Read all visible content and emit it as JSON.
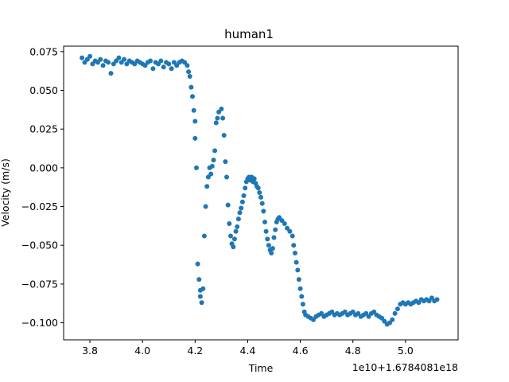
{
  "chart_data": {
    "type": "scatter",
    "title": "human1",
    "xlabel": "Time",
    "ylabel": "Velocity (m/s)",
    "x_offset_label": "1e10+1.6784081e18",
    "xlim": [
      3.7,
      5.2
    ],
    "ylim": [
      -0.111,
      0.0785
    ],
    "x_ticks": [
      {
        "value": 3.8,
        "label": "3.8"
      },
      {
        "value": 4.0,
        "label": "4.0"
      },
      {
        "value": 4.2,
        "label": "4.2"
      },
      {
        "value": 4.4,
        "label": "4.4"
      },
      {
        "value": 4.6,
        "label": "4.6"
      },
      {
        "value": 4.8,
        "label": "4.8"
      },
      {
        "value": 5.0,
        "label": "5.0"
      }
    ],
    "y_ticks": [
      {
        "value": 0.075,
        "label": "0.075"
      },
      {
        "value": 0.05,
        "label": "0.050"
      },
      {
        "value": 0.025,
        "label": "0.025"
      },
      {
        "value": 0.0,
        "label": "0.000"
      },
      {
        "value": -0.025,
        "label": "−0.025"
      },
      {
        "value": -0.05,
        "label": "−0.050"
      },
      {
        "value": -0.075,
        "label": "−0.075"
      },
      {
        "value": -0.1,
        "label": "−0.100"
      }
    ],
    "grid": false,
    "marker_color": "#1f77b4",
    "series": [
      {
        "points": [
          [
            3.77,
            0.071
          ],
          [
            3.78,
            0.068
          ],
          [
            3.79,
            0.07
          ],
          [
            3.8,
            0.072
          ],
          [
            3.81,
            0.067
          ],
          [
            3.82,
            0.069
          ],
          [
            3.83,
            0.068
          ],
          [
            3.84,
            0.07
          ],
          [
            3.85,
            0.066
          ],
          [
            3.86,
            0.069
          ],
          [
            3.87,
            0.068
          ],
          [
            3.88,
            0.061
          ],
          [
            3.89,
            0.067
          ],
          [
            3.9,
            0.069
          ],
          [
            3.91,
            0.071
          ],
          [
            3.92,
            0.068
          ],
          [
            3.93,
            0.07
          ],
          [
            3.94,
            0.067
          ],
          [
            3.95,
            0.069
          ],
          [
            3.96,
            0.068
          ],
          [
            3.97,
            0.067
          ],
          [
            3.98,
            0.069
          ],
          [
            3.99,
            0.068
          ],
          [
            4.0,
            0.067
          ],
          [
            4.01,
            0.066
          ],
          [
            4.02,
            0.068
          ],
          [
            4.03,
            0.069
          ],
          [
            4.04,
            0.064
          ],
          [
            4.05,
            0.068
          ],
          [
            4.06,
            0.067
          ],
          [
            4.07,
            0.069
          ],
          [
            4.08,
            0.065
          ],
          [
            4.09,
            0.068
          ],
          [
            4.1,
            0.067
          ],
          [
            4.11,
            0.064
          ],
          [
            4.12,
            0.068
          ],
          [
            4.13,
            0.066
          ],
          [
            4.14,
            0.068
          ],
          [
            4.15,
            0.069
          ],
          [
            4.16,
            0.068
          ],
          [
            4.17,
            0.066
          ],
          [
            4.175,
            0.062
          ],
          [
            4.18,
            0.059
          ],
          [
            4.185,
            0.052
          ],
          [
            4.19,
            0.046
          ],
          [
            4.195,
            0.037
          ],
          [
            4.2,
            0.03
          ],
          [
            4.2,
            0.019
          ],
          [
            4.205,
            0.0
          ],
          [
            4.21,
            -0.062
          ],
          [
            4.215,
            -0.072
          ],
          [
            4.22,
            -0.079
          ],
          [
            4.22,
            -0.083
          ],
          [
            4.225,
            -0.087
          ],
          [
            4.23,
            -0.078
          ],
          [
            4.235,
            -0.044
          ],
          [
            4.24,
            -0.025
          ],
          [
            4.245,
            -0.012
          ],
          [
            4.25,
            -0.006
          ],
          [
            4.255,
            0.0
          ],
          [
            4.26,
            -0.004
          ],
          [
            4.265,
            0.001
          ],
          [
            4.27,
            0.005
          ],
          [
            4.275,
            0.011
          ],
          [
            4.28,
            0.029
          ],
          [
            4.285,
            0.032
          ],
          [
            4.29,
            0.036
          ],
          [
            4.3,
            0.038
          ],
          [
            4.305,
            0.032
          ],
          [
            4.31,
            0.021
          ],
          [
            4.315,
            0.004
          ],
          [
            4.32,
            -0.006
          ],
          [
            4.325,
            -0.024
          ],
          [
            4.33,
            -0.036
          ],
          [
            4.335,
            -0.044
          ],
          [
            4.34,
            -0.049
          ],
          [
            4.345,
            -0.051
          ],
          [
            4.35,
            -0.046
          ],
          [
            4.355,
            -0.041
          ],
          [
            4.36,
            -0.038
          ],
          [
            4.365,
            -0.033
          ],
          [
            4.37,
            -0.029
          ],
          [
            4.375,
            -0.026
          ],
          [
            4.38,
            -0.022
          ],
          [
            4.385,
            -0.018
          ],
          [
            4.39,
            -0.013
          ],
          [
            4.395,
            -0.009
          ],
          [
            4.4,
            -0.007
          ],
          [
            4.405,
            -0.006
          ],
          [
            4.41,
            -0.008
          ],
          [
            4.415,
            -0.006
          ],
          [
            4.42,
            -0.009
          ],
          [
            4.425,
            -0.007
          ],
          [
            4.43,
            -0.01
          ],
          [
            4.435,
            -0.012
          ],
          [
            4.44,
            -0.013
          ],
          [
            4.445,
            -0.016
          ],
          [
            4.45,
            -0.019
          ],
          [
            4.455,
            -0.023
          ],
          [
            4.46,
            -0.028
          ],
          [
            4.465,
            -0.035
          ],
          [
            4.47,
            -0.041
          ],
          [
            4.475,
            -0.046
          ],
          [
            4.48,
            -0.05
          ],
          [
            4.485,
            -0.053
          ],
          [
            4.49,
            -0.055
          ],
          [
            4.495,
            -0.052
          ],
          [
            4.5,
            -0.045
          ],
          [
            4.505,
            -0.04
          ],
          [
            4.51,
            -0.035
          ],
          [
            4.515,
            -0.033
          ],
          [
            4.52,
            -0.032
          ],
          [
            4.53,
            -0.034
          ],
          [
            4.54,
            -0.036
          ],
          [
            4.55,
            -0.039
          ],
          [
            4.56,
            -0.041
          ],
          [
            4.57,
            -0.044
          ],
          [
            4.575,
            -0.05
          ],
          [
            4.58,
            -0.055
          ],
          [
            4.585,
            -0.061
          ],
          [
            4.59,
            -0.066
          ],
          [
            4.595,
            -0.072
          ],
          [
            4.6,
            -0.078
          ],
          [
            4.605,
            -0.083
          ],
          [
            4.61,
            -0.088
          ],
          [
            4.615,
            -0.093
          ],
          [
            4.62,
            -0.095
          ],
          [
            4.63,
            -0.096
          ],
          [
            4.64,
            -0.097
          ],
          [
            4.65,
            -0.098
          ],
          [
            4.66,
            -0.096
          ],
          [
            4.67,
            -0.095
          ],
          [
            4.68,
            -0.094
          ],
          [
            4.69,
            -0.096
          ],
          [
            4.7,
            -0.095
          ],
          [
            4.71,
            -0.094
          ],
          [
            4.72,
            -0.093
          ],
          [
            4.73,
            -0.095
          ],
          [
            4.74,
            -0.094
          ],
          [
            4.75,
            -0.095
          ],
          [
            4.76,
            -0.094
          ],
          [
            4.77,
            -0.093
          ],
          [
            4.78,
            -0.095
          ],
          [
            4.79,
            -0.094
          ],
          [
            4.8,
            -0.093
          ],
          [
            4.81,
            -0.095
          ],
          [
            4.82,
            -0.094
          ],
          [
            4.83,
            -0.096
          ],
          [
            4.84,
            -0.095
          ],
          [
            4.85,
            -0.094
          ],
          [
            4.86,
            -0.096
          ],
          [
            4.87,
            -0.094
          ],
          [
            4.88,
            -0.093
          ],
          [
            4.89,
            -0.095
          ],
          [
            4.9,
            -0.096
          ],
          [
            4.91,
            -0.097
          ],
          [
            4.92,
            -0.099
          ],
          [
            4.93,
            -0.101
          ],
          [
            4.94,
            -0.1
          ],
          [
            4.95,
            -0.098
          ],
          [
            4.96,
            -0.094
          ],
          [
            4.97,
            -0.091
          ],
          [
            4.98,
            -0.088
          ],
          [
            4.99,
            -0.087
          ],
          [
            5.0,
            -0.088
          ],
          [
            5.01,
            -0.087
          ],
          [
            5.02,
            -0.088
          ],
          [
            5.03,
            -0.087
          ],
          [
            5.04,
            -0.086
          ],
          [
            5.05,
            -0.087
          ],
          [
            5.06,
            -0.085
          ],
          [
            5.07,
            -0.086
          ],
          [
            5.08,
            -0.085
          ],
          [
            5.09,
            -0.086
          ],
          [
            5.1,
            -0.084
          ],
          [
            5.11,
            -0.086
          ],
          [
            5.12,
            -0.085
          ]
        ]
      }
    ]
  }
}
